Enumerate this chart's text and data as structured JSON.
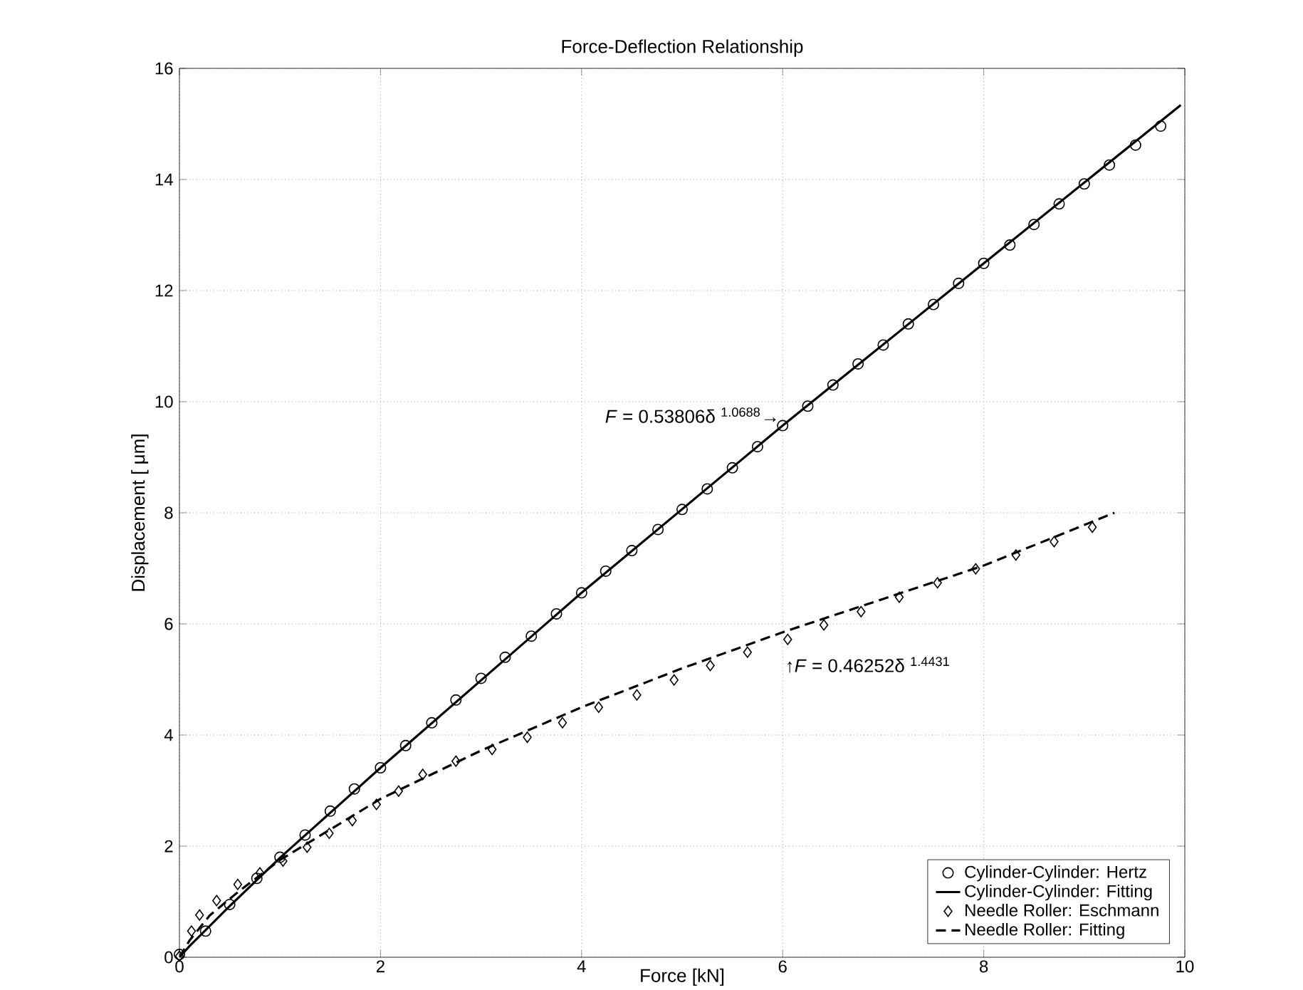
{
  "chart_data": {
    "type": "scatter",
    "title": "Force-Deflection Relationship",
    "xlabel": "Force [kN]",
    "ylabel": "Displacement [ μm]",
    "xlim": [
      0,
      10
    ],
    "ylim": [
      0,
      16
    ],
    "xticks": [
      0,
      2,
      4,
      6,
      8,
      10
    ],
    "yticks": [
      0,
      2,
      4,
      6,
      8,
      10,
      12,
      14,
      16
    ],
    "grid": true,
    "legend": "bottom right",
    "series": [
      {
        "name": "Cylinder-Cylinder: Hertz",
        "marker": "circle",
        "color": "#000000",
        "x": [
          0,
          0.26,
          0.5,
          0.77,
          1.0,
          1.25,
          1.5,
          1.74,
          2.0,
          2.25,
          2.51,
          2.75,
          3.0,
          3.24,
          3.5,
          3.75,
          4.0,
          4.24,
          4.5,
          4.76,
          5.0,
          5.25,
          5.5,
          5.75,
          6.0,
          6.25,
          6.5,
          6.75,
          7.0,
          7.25,
          7.5,
          7.75,
          8.0,
          8.26,
          8.5,
          8.75,
          9.0,
          9.25,
          9.51,
          9.76
        ],
        "values": [
          0.05,
          0.47,
          0.95,
          1.42,
          1.8,
          2.2,
          2.63,
          3.03,
          3.41,
          3.81,
          4.22,
          4.63,
          5.02,
          5.4,
          5.78,
          6.18,
          6.56,
          6.95,
          7.32,
          7.7,
          8.06,
          8.43,
          8.81,
          9.19,
          9.57,
          9.92,
          10.3,
          10.68,
          11.02,
          11.4,
          11.75,
          12.13,
          12.49,
          12.82,
          13.19,
          13.56,
          13.92,
          14.26,
          14.62,
          14.96
        ]
      },
      {
        "name": "Cylinder-Cylinder: Fitting",
        "type": "line",
        "line_style": "solid",
        "color": "#000000",
        "x": [
          0,
          0.1,
          0.25,
          0.5,
          1,
          2,
          4,
          6,
          8,
          9.96
        ],
        "values": [
          0,
          0.2,
          0.47,
          0.92,
          1.79,
          3.41,
          6.56,
          9.57,
          12.49,
          15.34
        ]
      },
      {
        "name": "Needle Roller: Eschmann",
        "marker": "diamond",
        "color": "#000000",
        "x": [
          0,
          0.12,
          0.2,
          0.37,
          0.58,
          0.8,
          1.03,
          1.27,
          1.49,
          1.72,
          1.96,
          2.18,
          2.42,
          2.75,
          3.11,
          3.46,
          3.81,
          4.17,
          4.55,
          4.92,
          5.28,
          5.65,
          6.05,
          6.41,
          6.78,
          7.16,
          7.54,
          7.92,
          8.32,
          8.7,
          9.08
        ],
        "values": [
          0.02,
          0.47,
          0.76,
          1.02,
          1.31,
          1.52,
          1.73,
          1.98,
          2.23,
          2.46,
          2.75,
          2.99,
          3.29,
          3.53,
          3.74,
          3.96,
          4.22,
          4.5,
          4.72,
          4.99,
          5.25,
          5.49,
          5.72,
          5.98,
          6.22,
          6.48,
          6.74,
          6.99,
          7.24,
          7.48,
          7.74
        ]
      },
      {
        "name": "Needle Roller: Fitting",
        "type": "line",
        "line_style": "dashed",
        "color": "#000000",
        "x": [
          0,
          0.1,
          0.3,
          0.6,
          1,
          2,
          3,
          4,
          5,
          6,
          7,
          8,
          9.3
        ],
        "values": [
          0,
          0.3,
          0.75,
          1.2,
          1.75,
          2.85,
          3.72,
          4.5,
          5.2,
          5.85,
          6.45,
          7.05,
          8.0
        ]
      }
    ],
    "annotations": [
      {
        "text": "*F* = 0.53806δ $^{1.0688}$→",
        "x": 6.0,
        "y": 9.57
      },
      {
        "text": "↑*F* = 0.46252δ $^{1.4431}$",
        "x": 6.05,
        "y": 5.72
      }
    ]
  }
}
